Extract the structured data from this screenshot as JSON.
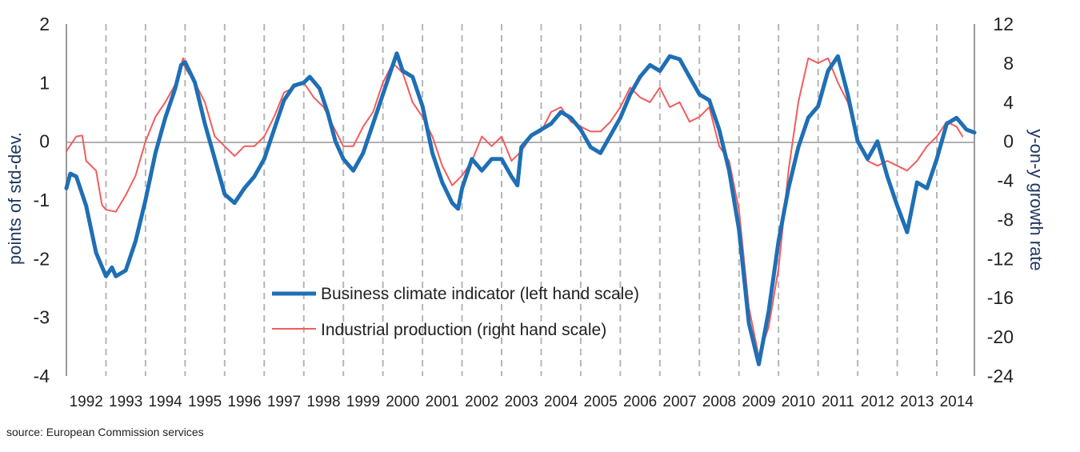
{
  "chart_data": {
    "type": "line",
    "ylabel_left": "points of std-dev.",
    "ylabel_right": "y-on-y growth rate",
    "y_left_ticks": [
      "-4",
      "-3",
      "-2",
      "-1",
      "0",
      "1",
      "2"
    ],
    "y_right_ticks": [
      "-24",
      "-20",
      "-16",
      "-12",
      "-8",
      "-4",
      "0",
      "4",
      "8",
      "12"
    ],
    "ylim_left": [
      -4,
      2
    ],
    "ylim_right": [
      -24,
      12
    ],
    "x_tick_labels": [
      "1992",
      "1993",
      "1994",
      "1995",
      "1996",
      "1997",
      "1998",
      "1999",
      "2000",
      "2001",
      "2002",
      "2003",
      "2004",
      "2005",
      "2006",
      "2007",
      "2008",
      "2009",
      "2010",
      "2011",
      "2012",
      "2013",
      "2014"
    ],
    "xlim": [
      1991.0,
      2013.95
    ],
    "grid": "vertical dashed lines at year boundaries",
    "legend_position": "center",
    "series": [
      {
        "name": "Business climate indicator (left hand scale)",
        "axis": "left",
        "color": "#1f6fb5",
        "points": [
          [
            1991.0,
            -0.8
          ],
          [
            1991.1,
            -0.55
          ],
          [
            1991.25,
            -0.6
          ],
          [
            1991.5,
            -1.1
          ],
          [
            1991.75,
            -1.9
          ],
          [
            1992.0,
            -2.3
          ],
          [
            1992.15,
            -2.15
          ],
          [
            1992.25,
            -2.3
          ],
          [
            1992.5,
            -2.2
          ],
          [
            1992.75,
            -1.7
          ],
          [
            1993.0,
            -1.0
          ],
          [
            1993.25,
            -0.2
          ],
          [
            1993.5,
            0.4
          ],
          [
            1993.75,
            0.9
          ],
          [
            1993.9,
            1.3
          ],
          [
            1994.0,
            1.35
          ],
          [
            1994.25,
            1.0
          ],
          [
            1994.5,
            0.3
          ],
          [
            1994.75,
            -0.3
          ],
          [
            1995.0,
            -0.9
          ],
          [
            1995.25,
            -1.05
          ],
          [
            1995.5,
            -0.8
          ],
          [
            1995.75,
            -0.6
          ],
          [
            1996.0,
            -0.3
          ],
          [
            1996.25,
            0.2
          ],
          [
            1996.5,
            0.7
          ],
          [
            1996.75,
            0.95
          ],
          [
            1997.0,
            1.0
          ],
          [
            1997.15,
            1.1
          ],
          [
            1997.4,
            0.9
          ],
          [
            1997.6,
            0.5
          ],
          [
            1997.8,
            0.0
          ],
          [
            1998.0,
            -0.3
          ],
          [
            1998.25,
            -0.5
          ],
          [
            1998.5,
            -0.2
          ],
          [
            1998.75,
            0.3
          ],
          [
            1999.0,
            0.8
          ],
          [
            1999.25,
            1.3
          ],
          [
            1999.35,
            1.5
          ],
          [
            1999.5,
            1.2
          ],
          [
            1999.75,
            1.1
          ],
          [
            2000.0,
            0.6
          ],
          [
            2000.25,
            -0.2
          ],
          [
            2000.5,
            -0.7
          ],
          [
            2000.75,
            -1.05
          ],
          [
            2000.9,
            -1.15
          ],
          [
            2001.0,
            -0.8
          ],
          [
            2001.25,
            -0.3
          ],
          [
            2001.5,
            -0.5
          ],
          [
            2001.75,
            -0.3
          ],
          [
            2002.0,
            -0.3
          ],
          [
            2002.25,
            -0.6
          ],
          [
            2002.4,
            -0.75
          ],
          [
            2002.5,
            -0.1
          ],
          [
            2002.75,
            0.1
          ],
          [
            2003.0,
            0.2
          ],
          [
            2003.25,
            0.3
          ],
          [
            2003.5,
            0.5
          ],
          [
            2003.75,
            0.4
          ],
          [
            2004.0,
            0.2
          ],
          [
            2004.25,
            -0.1
          ],
          [
            2004.5,
            -0.2
          ],
          [
            2004.75,
            0.1
          ],
          [
            2005.0,
            0.4
          ],
          [
            2005.25,
            0.8
          ],
          [
            2005.5,
            1.1
          ],
          [
            2005.75,
            1.3
          ],
          [
            2006.0,
            1.2
          ],
          [
            2006.25,
            1.45
          ],
          [
            2006.5,
            1.4
          ],
          [
            2006.75,
            1.1
          ],
          [
            2007.0,
            0.8
          ],
          [
            2007.25,
            0.7
          ],
          [
            2007.5,
            0.2
          ],
          [
            2007.75,
            -0.5
          ],
          [
            2008.0,
            -1.5
          ],
          [
            2008.25,
            -3.1
          ],
          [
            2008.5,
            -3.8
          ],
          [
            2008.75,
            -2.9
          ],
          [
            2009.0,
            -1.7
          ],
          [
            2009.25,
            -0.8
          ],
          [
            2009.5,
            -0.1
          ],
          [
            2009.75,
            0.4
          ],
          [
            2010.0,
            0.6
          ],
          [
            2010.25,
            1.2
          ],
          [
            2010.5,
            1.45
          ],
          [
            2010.75,
            0.8
          ],
          [
            2011.0,
            0.0
          ],
          [
            2011.25,
            -0.3
          ],
          [
            2011.5,
            0.0
          ],
          [
            2011.75,
            -0.6
          ],
          [
            2012.0,
            -1.1
          ],
          [
            2012.25,
            -1.55
          ],
          [
            2012.5,
            -0.7
          ],
          [
            2012.75,
            -0.8
          ],
          [
            2013.0,
            -0.3
          ],
          [
            2013.25,
            0.3
          ],
          [
            2013.5,
            0.4
          ],
          [
            2013.75,
            0.2
          ],
          [
            2013.95,
            0.15
          ]
        ]
      },
      {
        "name": "Industrial production (right hand scale)",
        "axis": "right",
        "color": "#f25c5c",
        "points": [
          [
            1991.0,
            -1.0
          ],
          [
            1991.25,
            0.5
          ],
          [
            1991.4,
            0.6
          ],
          [
            1991.5,
            -2.0
          ],
          [
            1991.75,
            -3.0
          ],
          [
            1991.9,
            -6.5
          ],
          [
            1992.0,
            -7.0
          ],
          [
            1992.25,
            -7.2
          ],
          [
            1992.5,
            -5.5
          ],
          [
            1992.75,
            -3.5
          ],
          [
            1993.0,
            0.0
          ],
          [
            1993.25,
            2.5
          ],
          [
            1993.5,
            4.0
          ],
          [
            1993.75,
            5.8
          ],
          [
            1993.95,
            8.5
          ],
          [
            1994.0,
            7.5
          ],
          [
            1994.25,
            6.0
          ],
          [
            1994.5,
            4.0
          ],
          [
            1994.75,
            0.5
          ],
          [
            1995.0,
            -0.5
          ],
          [
            1995.25,
            -1.5
          ],
          [
            1995.5,
            -0.5
          ],
          [
            1995.75,
            -0.5
          ],
          [
            1996.0,
            0.5
          ],
          [
            1996.25,
            2.5
          ],
          [
            1996.5,
            5.0
          ],
          [
            1996.75,
            5.5
          ],
          [
            1997.0,
            6.0
          ],
          [
            1997.25,
            4.5
          ],
          [
            1997.5,
            3.5
          ],
          [
            1997.75,
            1.5
          ],
          [
            1998.0,
            -0.5
          ],
          [
            1998.25,
            -0.5
          ],
          [
            1998.5,
            1.5
          ],
          [
            1998.75,
            3.0
          ],
          [
            1999.0,
            6.0
          ],
          [
            1999.25,
            8.0
          ],
          [
            1999.5,
            7.0
          ],
          [
            1999.75,
            4.0
          ],
          [
            2000.0,
            2.5
          ],
          [
            2000.25,
            0.5
          ],
          [
            2000.5,
            -2.5
          ],
          [
            2000.75,
            -4.5
          ],
          [
            2001.0,
            -3.5
          ],
          [
            2001.25,
            -2.0
          ],
          [
            2001.5,
            0.5
          ],
          [
            2001.75,
            -0.5
          ],
          [
            2002.0,
            0.5
          ],
          [
            2002.25,
            -2.0
          ],
          [
            2002.5,
            -1.0
          ],
          [
            2002.75,
            0.5
          ],
          [
            2003.0,
            1.0
          ],
          [
            2003.25,
            3.0
          ],
          [
            2003.5,
            3.5
          ],
          [
            2003.75,
            2.0
          ],
          [
            2004.0,
            1.5
          ],
          [
            2004.25,
            1.0
          ],
          [
            2004.5,
            1.0
          ],
          [
            2004.75,
            2.0
          ],
          [
            2005.0,
            3.5
          ],
          [
            2005.25,
            5.5
          ],
          [
            2005.5,
            4.5
          ],
          [
            2005.75,
            4.0
          ],
          [
            2006.0,
            5.5
          ],
          [
            2006.25,
            3.5
          ],
          [
            2006.5,
            4.0
          ],
          [
            2006.75,
            2.0
          ],
          [
            2007.0,
            2.5
          ],
          [
            2007.25,
            3.5
          ],
          [
            2007.5,
            -0.5
          ],
          [
            2007.75,
            -2.0
          ],
          [
            2008.0,
            -7.0
          ],
          [
            2008.25,
            -17.0
          ],
          [
            2008.5,
            -22.0
          ],
          [
            2008.75,
            -19.0
          ],
          [
            2009.0,
            -13.0
          ],
          [
            2009.25,
            -3.0
          ],
          [
            2009.5,
            4.0
          ],
          [
            2009.75,
            8.5
          ],
          [
            2010.0,
            8.0
          ],
          [
            2010.25,
            8.5
          ],
          [
            2010.5,
            6.0
          ],
          [
            2010.75,
            4.0
          ],
          [
            2011.0,
            0.0
          ],
          [
            2011.25,
            -2.0
          ],
          [
            2011.5,
            -2.5
          ],
          [
            2011.75,
            -2.0
          ],
          [
            2012.0,
            -2.5
          ],
          [
            2012.25,
            -3.0
          ],
          [
            2012.5,
            -2.0
          ],
          [
            2012.75,
            -0.5
          ],
          [
            2013.0,
            0.5
          ],
          [
            2013.25,
            2.0
          ],
          [
            2013.5,
            1.5
          ],
          [
            2013.65,
            0.5
          ]
        ]
      }
    ]
  },
  "source_note": "source: European Commission services"
}
